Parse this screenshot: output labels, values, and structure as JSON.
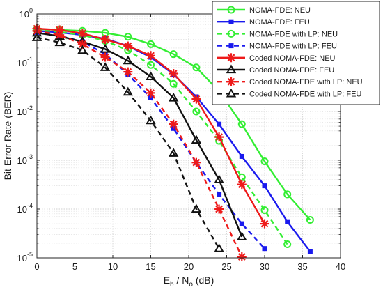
{
  "chart_data": {
    "type": "line",
    "xlabel_base": "E",
    "xlabel_sub_b": "b",
    "xlabel_slash": " / N",
    "xlabel_sub_o": "o",
    "xlabel_unit": " (dB)",
    "ylabel": "Bit Error Rate (BER)",
    "xlim": [
      0,
      40
    ],
    "ylim": [
      1e-05,
      1
    ],
    "yscale": "log",
    "grid": true,
    "legend_position": "top-right",
    "x_ticks": [
      "0",
      "5",
      "10",
      "15",
      "20",
      "25",
      "30",
      "35",
      "40"
    ],
    "y_ticks": [
      {
        "base": "10",
        "exp": "0"
      },
      {
        "base": "10",
        "exp": "-1"
      },
      {
        "base": "10",
        "exp": "-2"
      },
      {
        "base": "10",
        "exp": "-3"
      },
      {
        "base": "10",
        "exp": "-4"
      },
      {
        "base": "10",
        "exp": "-5"
      }
    ],
    "series": [
      {
        "name": "NOMA-FDE: NEU",
        "color": "#33ee33",
        "dash": "solid",
        "marker": "circle",
        "x": [
          0,
          3,
          6,
          9,
          12,
          15,
          18,
          21,
          24,
          27,
          30,
          33,
          36
        ],
        "y": [
          0.49,
          0.47,
          0.45,
          0.41,
          0.34,
          0.24,
          0.15,
          0.08,
          0.026,
          0.0055,
          0.00095,
          0.0002,
          6e-05
        ]
      },
      {
        "name": "NOMA-FDE: FEU",
        "color": "#1a1aee",
        "dash": "solid",
        "marker": "square",
        "x": [
          0,
          3,
          6,
          9,
          12,
          15,
          18,
          21,
          24,
          27,
          30,
          33,
          36
        ],
        "y": [
          0.45,
          0.42,
          0.37,
          0.31,
          0.22,
          0.13,
          0.058,
          0.02,
          0.0055,
          0.0012,
          0.0003,
          5.5e-05,
          1.35e-05
        ]
      },
      {
        "name": "NOMA-FDE with LP: NEU",
        "color": "#33ee33",
        "dash": "dashed",
        "marker": "circle",
        "x": [
          0,
          3,
          6,
          9,
          12,
          15,
          18,
          21,
          24,
          27,
          30,
          33
        ],
        "y": [
          0.47,
          0.43,
          0.37,
          0.28,
          0.18,
          0.09,
          0.037,
          0.01,
          0.0025,
          0.00045,
          9.5e-05,
          1.9e-05
        ]
      },
      {
        "name": "NOMA-FDE with LP: FEU",
        "color": "#1a1aee",
        "dash": "dashed",
        "marker": "square",
        "x": [
          0,
          3,
          6,
          9,
          12,
          15,
          18,
          21,
          24,
          27,
          30
        ],
        "y": [
          0.42,
          0.36,
          0.27,
          0.15,
          0.058,
          0.019,
          0.0045,
          0.0009,
          0.0002,
          5e-05,
          1.55e-05
        ]
      },
      {
        "name": "Coded NOMA-FDE: NEU",
        "color": "#ee1a1a",
        "dash": "solid",
        "marker": "asterisk",
        "x": [
          0,
          3,
          6,
          9,
          12,
          15,
          18,
          21,
          24,
          27,
          30
        ],
        "y": [
          0.5,
          0.47,
          0.4,
          0.3,
          0.22,
          0.14,
          0.06,
          0.018,
          0.003,
          0.00032,
          5e-05
        ]
      },
      {
        "name": "Coded NOMA-FDE: FEU",
        "color": "#111111",
        "dash": "solid",
        "marker": "triangle",
        "x": [
          0,
          3,
          6,
          9,
          12,
          15,
          18,
          21,
          24,
          27
        ],
        "y": [
          0.41,
          0.35,
          0.27,
          0.19,
          0.11,
          0.052,
          0.019,
          0.0026,
          0.0004,
          2.7e-05
        ]
      },
      {
        "name": "Coded NOMA-FDE with LP: NEU",
        "color": "#ee1a1a",
        "dash": "dashed",
        "marker": "asterisk",
        "x": [
          0,
          3,
          6,
          9,
          12,
          15,
          18,
          21,
          24,
          27
        ],
        "y": [
          0.45,
          0.37,
          0.24,
          0.13,
          0.065,
          0.024,
          0.0055,
          0.0009,
          0.0001,
          1.05e-05
        ]
      },
      {
        "name": "Coded NOMA-FDE with LP: FEU",
        "color": "#111111",
        "dash": "dashed",
        "marker": "triangle",
        "x": [
          0,
          3,
          6,
          9,
          12,
          15,
          18,
          21,
          24
        ],
        "y": [
          0.33,
          0.26,
          0.18,
          0.08,
          0.025,
          0.0065,
          0.0014,
          0.0001,
          1.55e-05
        ]
      }
    ]
  }
}
